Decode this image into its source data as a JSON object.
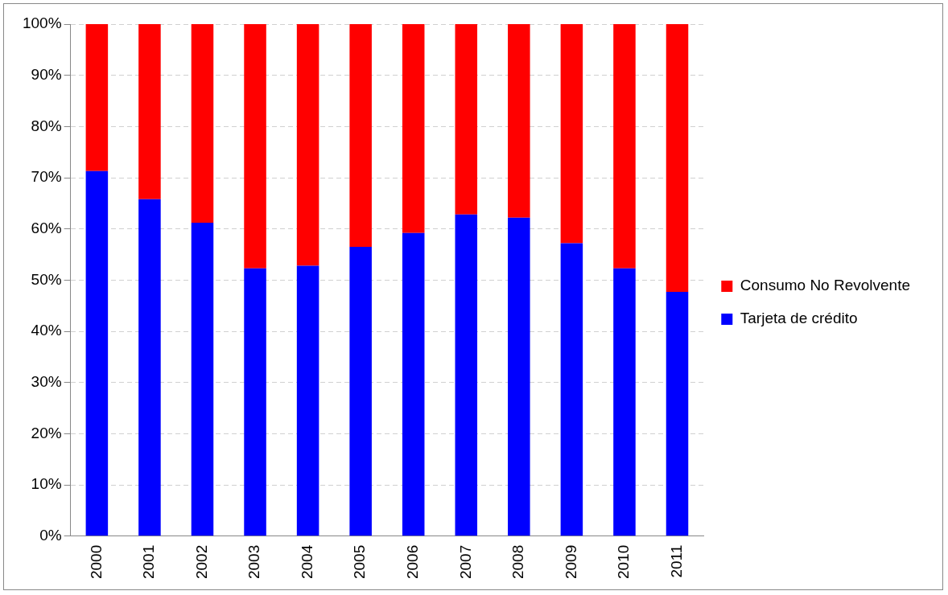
{
  "chart_data": {
    "type": "bar",
    "stacked": true,
    "categories": [
      "2000",
      "2001",
      "2002",
      "2003",
      "2004",
      "2005",
      "2006",
      "2007",
      "2008",
      "2009",
      "2010",
      "2011"
    ],
    "series": [
      {
        "name": "Tarjeta de crédito",
        "color": "#0000ff",
        "values": [
          71.3,
          65.8,
          61.2,
          52.3,
          52.8,
          56.5,
          59.2,
          62.8,
          62.2,
          57.2,
          52.3,
          47.7
        ]
      },
      {
        "name": "Consumo No Revolvente",
        "color": "#ff0000",
        "values": [
          28.7,
          34.2,
          38.8,
          47.7,
          47.2,
          43.5,
          40.8,
          37.2,
          37.8,
          42.8,
          47.7,
          52.3
        ]
      }
    ],
    "ylim": [
      0,
      100
    ],
    "yticks": [
      {
        "value": 0,
        "label": "0%"
      },
      {
        "value": 10,
        "label": "10%"
      },
      {
        "value": 20,
        "label": "20%"
      },
      {
        "value": 30,
        "label": "30%"
      },
      {
        "value": 40,
        "label": "40%"
      },
      {
        "value": 50,
        "label": "50%"
      },
      {
        "value": 60,
        "label": "60%"
      },
      {
        "value": 70,
        "label": "70%"
      },
      {
        "value": 80,
        "label": "80%"
      },
      {
        "value": 90,
        "label": "90%"
      },
      {
        "value": 100,
        "label": "100%"
      }
    ],
    "grid": "y",
    "legend": "right"
  }
}
